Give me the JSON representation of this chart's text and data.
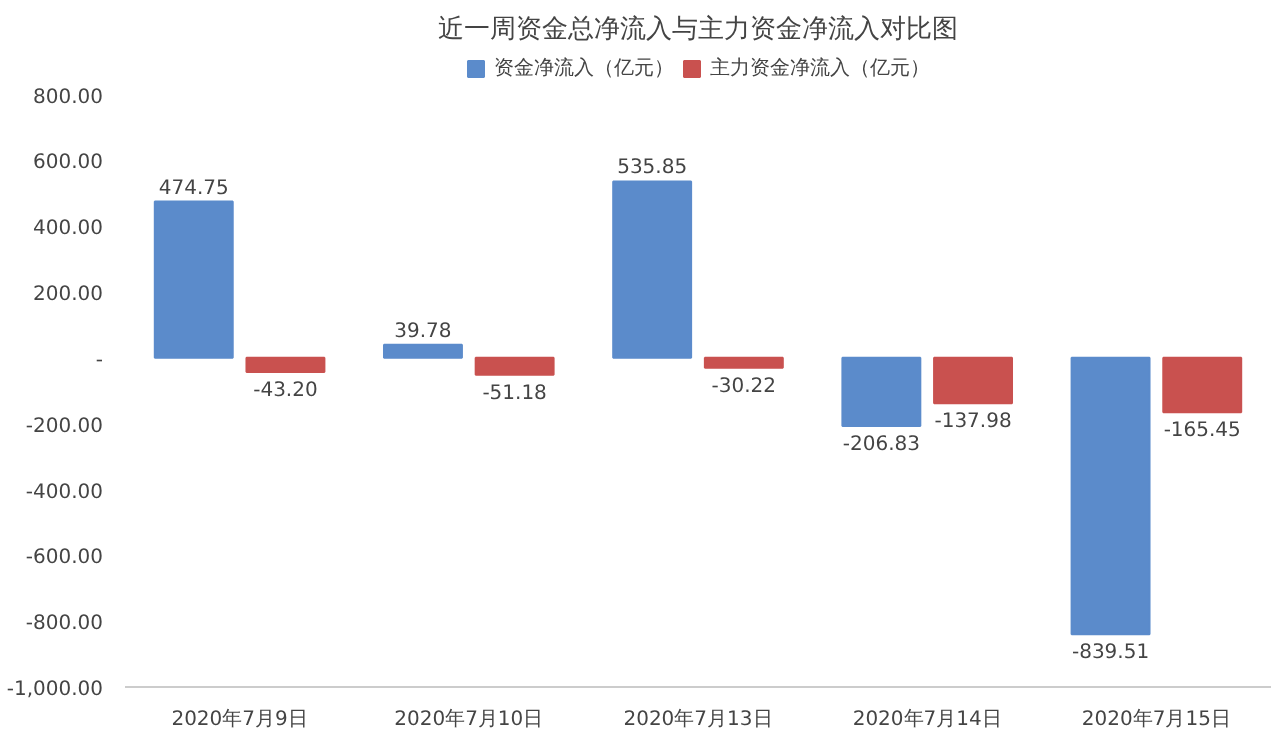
{
  "chart_data": {
    "type": "bar",
    "title": "近一周资金总净流入与主力资金净流入对比图",
    "categories": [
      "2020年7月9日",
      "2020年7月10日",
      "2020年7月13日",
      "2020年7月14日",
      "2020年7月15日"
    ],
    "series": [
      {
        "name": "资金净流入（亿元）",
        "color": "#5b8bcb",
        "values": [
          474.75,
          39.78,
          535.85,
          -206.83,
          -839.51
        ],
        "value_labels": [
          "474.75",
          "39.78",
          "535.85",
          "-206.83",
          "-839.51"
        ]
      },
      {
        "name": "主力资金净流入（亿元）",
        "color": "#c9514f",
        "values": [
          -43.2,
          -51.18,
          -30.22,
          -137.98,
          -165.45
        ],
        "value_labels": [
          "-43.20",
          "-51.18",
          "-30.22",
          "-137.98",
          "-165.45"
        ]
      }
    ],
    "ylim": [
      -1000,
      920
    ],
    "yticks": [
      {
        "value": -1000,
        "label": "-1,000.00"
      },
      {
        "value": -800,
        "label": "-800.00"
      },
      {
        "value": -600,
        "label": "-600.00"
      },
      {
        "value": -400,
        "label": "-400.00"
      },
      {
        "value": -200,
        "label": "-200.00"
      },
      {
        "value": 0,
        "label": "-"
      },
      {
        "value": 200,
        "label": "200.00"
      },
      {
        "value": 400,
        "label": "400.00"
      },
      {
        "value": 600,
        "label": "600.00"
      },
      {
        "value": 800,
        "label": "800.00"
      }
    ],
    "legend": "top",
    "grid": false
  }
}
